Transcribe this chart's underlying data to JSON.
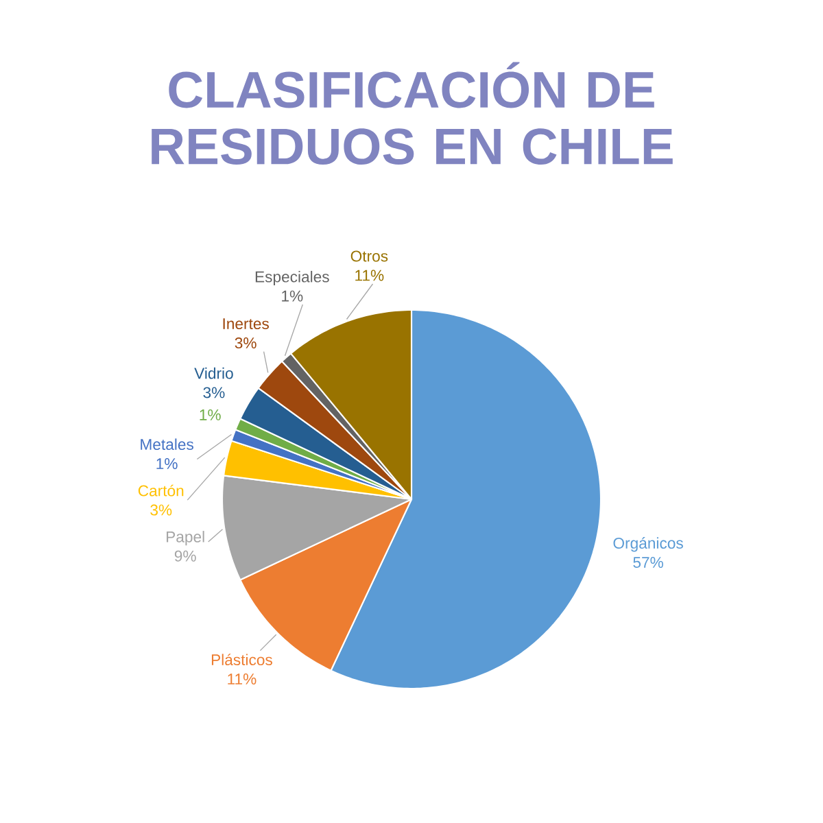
{
  "chart_data": {
    "type": "pie",
    "title": "CLASIFICACIÓN DE RESIDUOS EN CHILE",
    "categories": [
      "Orgánicos",
      "Plásticos",
      "Papel",
      "Cartón",
      "Metales",
      null,
      "Vidrio",
      "Inertes",
      "Especiales",
      "Otros"
    ],
    "values": [
      57,
      11,
      9,
      3,
      1,
      1,
      3,
      3,
      1,
      11
    ],
    "value_labels": [
      "57%",
      "11%",
      "9%",
      "3%",
      "1%",
      "1%",
      "3%",
      "3%",
      "1%",
      "11%"
    ],
    "colors": [
      "#5b9bd5",
      "#ed7d31",
      "#a5a5a5",
      "#ffc000",
      "#4472c4",
      "#70ad47",
      "#255e91",
      "#9e480e",
      "#636363",
      "#997300"
    ]
  }
}
